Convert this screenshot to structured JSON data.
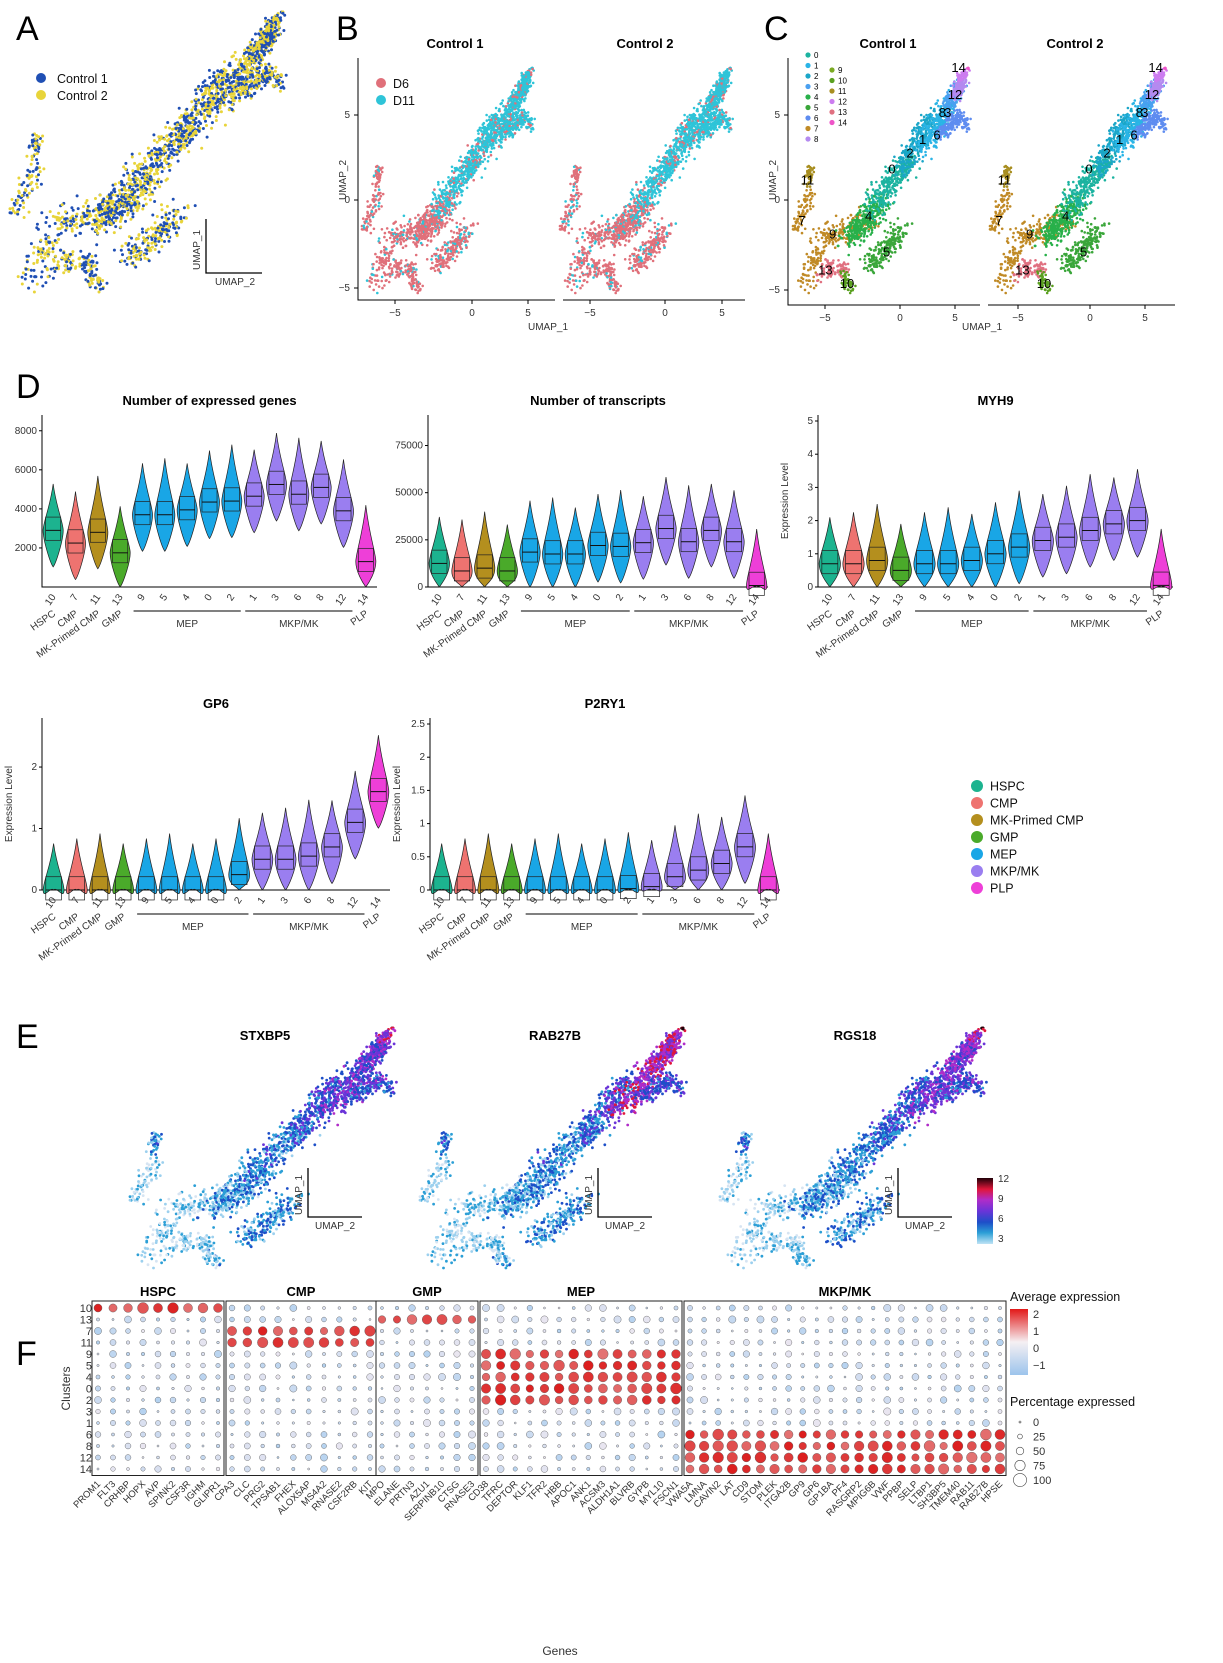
{
  "colors": {
    "control1": "#1f4fb4",
    "control2": "#e8d43a",
    "d6": "#e0707a",
    "d11": "#2ec4d8",
    "HSPC": "#1cb38f",
    "CMP": "#ee7370",
    "MK-Primed CMP": "#b48f1e",
    "GMP": "#4aaa2a",
    "MEP": "#19a6e6",
    "MKP/MK": "#9a7ef0",
    "PLP": "#ee3fd8"
  },
  "panels": {
    "A": {
      "letter": "A",
      "legend": [
        "Control 1",
        "Control 2"
      ],
      "xlabel": "UMAP_2",
      "ylabel": "UMAP_1"
    },
    "B": {
      "letter": "B",
      "titles": [
        "Control 1",
        "Control 2"
      ],
      "legend": [
        "D6",
        "D11"
      ],
      "xlabel": "UMAP_1",
      "ylabel": "UMAP_2",
      "xticks": [
        "−5",
        "0",
        "5"
      ],
      "yticks": [
        "5",
        "0",
        "−5"
      ]
    },
    "C": {
      "letter": "C",
      "titles": [
        "Control 1",
        "Control 2"
      ],
      "legend": [
        "0",
        "1",
        "2",
        "3",
        "4",
        "5",
        "6",
        "7",
        "8",
        "9",
        "10",
        "11",
        "12",
        "13",
        "14"
      ],
      "xlabel": "UMAP_1",
      "ylabel": "UMAP_2",
      "xticks": [
        "−5",
        "0",
        "5"
      ],
      "yticks": [
        "5",
        "0",
        "−5"
      ]
    },
    "D": {
      "letter": "D",
      "groups": [
        "MEP",
        "MKP/MK"
      ],
      "xticklabels": [
        "10",
        "7",
        "11",
        "13",
        "9",
        "5",
        "4",
        "0",
        "2",
        "1",
        "3",
        "6",
        "8",
        "12",
        "14"
      ],
      "typelabels": [
        "HSPC",
        "CMP",
        "MK-Primed CMP",
        "GMP",
        "PLP"
      ],
      "legend": [
        "HSPC",
        "CMP",
        "MK-Primed CMP",
        "GMP",
        "MEP",
        "MKP/MK",
        "PLP"
      ]
    },
    "E": {
      "letter": "E",
      "titles": [
        "STXBP5",
        "RAB27B",
        "RGS18"
      ],
      "xlabel": "UMAP_2",
      "ylabel": "UMAP_1",
      "colorbar_ticks": [
        "12",
        "9",
        "6",
        "3"
      ]
    },
    "F": {
      "letter": "F",
      "groups": [
        "HSPC",
        "CMP",
        "GMP",
        "MEP",
        "MKP/MK"
      ],
      "clusters": [
        "10",
        "13",
        "7",
        "11",
        "9",
        "5",
        "4",
        "0",
        "2",
        "3",
        "1",
        "6",
        "8",
        "12",
        "14"
      ],
      "ylabel": "Clusters",
      "xlabel": "Genes",
      "genes": {
        "HSPC": [
          "PROM1",
          "FLT3",
          "CRHBP",
          "HOPX",
          "AVP",
          "SPINK2",
          "CSF3R",
          "IGHM",
          "GLIPR1"
        ],
        "CMP": [
          "CPA3",
          "CLC",
          "PRG2",
          "TPSAB1",
          "FHEX",
          "ALOX5AP",
          "MS4A2",
          "RNASE2",
          "CSF2RB",
          "KIT"
        ],
        "GMP": [
          "MPO",
          "ELANE",
          "PRTN3",
          "AZU1",
          "SERPINB10",
          "CTSG",
          "RNASE3"
        ],
        "MEP": [
          "CD38",
          "TFRC",
          "DEPTOR",
          "KLF1",
          "TFR2",
          "HBB",
          "APOC1",
          "ANK1",
          "ACSM3",
          "ALDH1A1",
          "BLVRB",
          "GYPB",
          "MYL10",
          "FSCN1"
        ],
        "MKP/MK": [
          "VWA5A",
          "LMNA",
          "CAVIN2",
          "LAT",
          "CD9",
          "STOM",
          "PLEK",
          "ITGA2B",
          "GP9",
          "GP6",
          "GP1BA",
          "PF4",
          "RASGRP2",
          "MPIG6B",
          "VWF",
          "PPBP",
          "SELP",
          "LTBP1",
          "SH3BP5",
          "TMEM40",
          "RAB11",
          "RAB27B",
          "HPSE"
        ]
      },
      "legend_avg_title": "Average expression",
      "legend_avg_ticks": [
        "2",
        "1",
        "0",
        "−1"
      ],
      "legend_pct_title": "Percentage expressed",
      "legend_pct_ticks": [
        "0",
        "25",
        "50",
        "75",
        "100"
      ]
    }
  },
  "chart_data": [
    {
      "type": "violin",
      "title": "Number of expressed genes",
      "ylim": [
        0,
        8500
      ],
      "yticks": [
        2000,
        4000,
        6000,
        8000
      ],
      "categories": [
        "10",
        "7",
        "11",
        "13",
        "9",
        "5",
        "4",
        "0",
        "2",
        "1",
        "3",
        "6",
        "8",
        "12",
        "14"
      ],
      "medians": [
        2900,
        2250,
        2800,
        1750,
        3700,
        3700,
        3950,
        4350,
        4400,
        4650,
        5250,
        4750,
        5100,
        3900,
        1300
      ]
    },
    {
      "type": "violin",
      "title": "Number of transcripts",
      "ylim": [
        0,
        88000
      ],
      "yticks": [
        0,
        25000,
        50000,
        75000
      ],
      "categories": [
        "10",
        "7",
        "11",
        "13",
        "9",
        "5",
        "4",
        "0",
        "2",
        "1",
        "3",
        "6",
        "8",
        "12",
        "14"
      ],
      "medians": [
        12500,
        8500,
        10000,
        8500,
        18500,
        17500,
        17500,
        22000,
        21500,
        23500,
        31000,
        24000,
        30000,
        24000,
        800
      ]
    },
    {
      "type": "violin",
      "title": "MYH9",
      "ylabel": "Expression Level",
      "ylim": [
        0,
        5
      ],
      "yticks": [
        0,
        1,
        2,
        3,
        4,
        5
      ],
      "categories": [
        "10",
        "7",
        "11",
        "13",
        "9",
        "5",
        "4",
        "0",
        "2",
        "1",
        "3",
        "6",
        "8",
        "12",
        "14"
      ],
      "medians": [
        0.7,
        0.7,
        0.8,
        0.5,
        0.7,
        0.7,
        0.8,
        1.0,
        1.2,
        1.4,
        1.5,
        1.7,
        1.9,
        2.0,
        0.05
      ]
    },
    {
      "type": "violin",
      "title": "GP6",
      "ylabel": "Expression Level",
      "ylim": [
        0,
        2.7
      ],
      "yticks": [
        0,
        1,
        2
      ],
      "categories": [
        "10",
        "7",
        "11",
        "13",
        "9",
        "5",
        "4",
        "0",
        "2",
        "1",
        "3",
        "6",
        "8",
        "12",
        "14"
      ],
      "medians": [
        0,
        0,
        0,
        0,
        0,
        0,
        0,
        0,
        0.25,
        0.5,
        0.5,
        0.55,
        0.7,
        1.1,
        1.6
      ]
    },
    {
      "type": "violin",
      "title": "P2RY1",
      "ylabel": "Expression Level",
      "ylim": [
        0,
        2.5
      ],
      "yticks": [
        0.0,
        0.5,
        1.0,
        1.5,
        2.0,
        2.5
      ],
      "categories": [
        "10",
        "7",
        "11",
        "13",
        "9",
        "5",
        "4",
        "0",
        "2",
        "1",
        "3",
        "6",
        "8",
        "12",
        "14"
      ],
      "medians": [
        0,
        0,
        0,
        0,
        0,
        0,
        0,
        0,
        0.02,
        0.05,
        0.2,
        0.3,
        0.4,
        0.65,
        0
      ]
    }
  ]
}
